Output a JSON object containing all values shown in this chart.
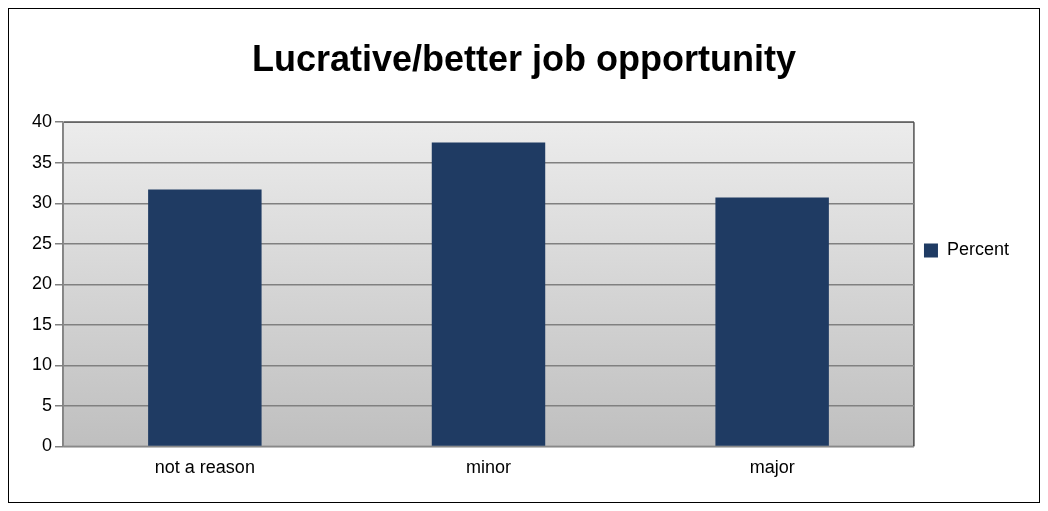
{
  "chart_data": {
    "type": "bar",
    "title": "Lucrative/better job opportunity",
    "categories": [
      "not a reason",
      "minor",
      "major"
    ],
    "series": [
      {
        "name": "Percent",
        "color": "#1f3b63",
        "values": [
          31.7,
          37.5,
          30.7
        ]
      }
    ],
    "ylim": [
      0,
      40
    ],
    "yticks": [
      0,
      5,
      10,
      15,
      20,
      25,
      30,
      35,
      40
    ],
    "grid": "y",
    "legend": "right"
  }
}
